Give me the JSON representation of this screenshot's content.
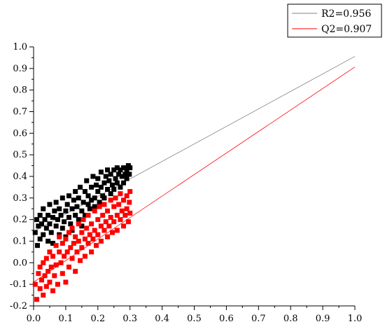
{
  "chart_data": {
    "type": "scatter",
    "title": "",
    "xlabel": "",
    "ylabel": "",
    "xlim": [
      0.0,
      1.0
    ],
    "ylim": [
      -0.2,
      1.0
    ],
    "xticks": [
      "0.0",
      "0.1",
      "0.2",
      "0.3",
      "0.4",
      "0.5",
      "0.6",
      "0.7",
      "0.8",
      "0.9",
      "1.0"
    ],
    "yticks": [
      "-0.2",
      "-0.1",
      "0.0",
      "0.1",
      "0.2",
      "0.3",
      "0.4",
      "0.5",
      "0.6",
      "0.7",
      "0.8",
      "0.9",
      "1.0"
    ],
    "grid": false,
    "legend_position": "top-right",
    "series": [
      {
        "name": "R2=0.956",
        "kind": "fit-line",
        "color": "#808080",
        "intercept": 0.145,
        "slope": 0.811,
        "x_range": [
          0.0,
          1.0
        ]
      },
      {
        "name": "Q2=0.907",
        "kind": "fit-line",
        "color": "#ff0000",
        "intercept": -0.09,
        "slope": 0.997,
        "x_range": [
          0.0,
          1.0
        ]
      },
      {
        "kind": "points",
        "color": "#000000",
        "marker": "square",
        "points": [
          [
            0.005,
            0.14
          ],
          [
            0.01,
            0.2
          ],
          [
            0.012,
            0.08
          ],
          [
            0.015,
            0.17
          ],
          [
            0.02,
            0.22
          ],
          [
            0.02,
            0.11
          ],
          [
            0.025,
            0.18
          ],
          [
            0.03,
            0.13
          ],
          [
            0.03,
            0.25
          ],
          [
            0.035,
            0.2
          ],
          [
            0.04,
            0.16
          ],
          [
            0.045,
            0.1
          ],
          [
            0.045,
            0.22
          ],
          [
            0.05,
            0.18
          ],
          [
            0.05,
            0.27
          ],
          [
            0.055,
            0.14
          ],
          [
            0.06,
            0.21
          ],
          [
            0.06,
            0.09
          ],
          [
            0.065,
            0.24
          ],
          [
            0.07,
            0.17
          ],
          [
            0.07,
            0.28
          ],
          [
            0.075,
            0.2
          ],
          [
            0.08,
            0.13
          ],
          [
            0.08,
            0.25
          ],
          [
            0.085,
            0.22
          ],
          [
            0.09,
            0.16
          ],
          [
            0.09,
            0.3
          ],
          [
            0.095,
            0.19
          ],
          [
            0.1,
            0.24
          ],
          [
            0.1,
            0.12
          ],
          [
            0.105,
            0.27
          ],
          [
            0.11,
            0.21
          ],
          [
            0.11,
            0.31
          ],
          [
            0.115,
            0.18
          ],
          [
            0.12,
            0.25
          ],
          [
            0.12,
            0.15
          ],
          [
            0.125,
            0.29
          ],
          [
            0.13,
            0.22
          ],
          [
            0.13,
            0.33
          ],
          [
            0.135,
            0.26
          ],
          [
            0.14,
            0.2
          ],
          [
            0.14,
            0.3
          ],
          [
            0.145,
            0.35
          ],
          [
            0.15,
            0.24
          ],
          [
            0.15,
            0.17
          ],
          [
            0.155,
            0.28
          ],
          [
            0.16,
            0.33
          ],
          [
            0.16,
            0.22
          ],
          [
            0.165,
            0.38
          ],
          [
            0.17,
            0.27
          ],
          [
            0.17,
            0.31
          ],
          [
            0.175,
            0.25
          ],
          [
            0.18,
            0.35
          ],
          [
            0.18,
            0.29
          ],
          [
            0.185,
            0.4
          ],
          [
            0.19,
            0.3
          ],
          [
            0.19,
            0.26
          ],
          [
            0.195,
            0.36
          ],
          [
            0.2,
            0.33
          ],
          [
            0.2,
            0.39
          ],
          [
            0.205,
            0.28
          ],
          [
            0.21,
            0.35
          ],
          [
            0.21,
            0.42
          ],
          [
            0.215,
            0.31
          ],
          [
            0.22,
            0.37
          ],
          [
            0.22,
            0.3
          ],
          [
            0.225,
            0.4
          ],
          [
            0.23,
            0.34
          ],
          [
            0.23,
            0.43
          ],
          [
            0.235,
            0.38
          ],
          [
            0.24,
            0.32
          ],
          [
            0.24,
            0.41
          ],
          [
            0.245,
            0.36
          ],
          [
            0.25,
            0.43
          ],
          [
            0.25,
            0.34
          ],
          [
            0.255,
            0.39
          ],
          [
            0.26,
            0.44
          ],
          [
            0.26,
            0.37
          ],
          [
            0.265,
            0.41
          ],
          [
            0.27,
            0.35
          ],
          [
            0.27,
            0.43
          ],
          [
            0.275,
            0.4
          ],
          [
            0.28,
            0.37
          ],
          [
            0.28,
            0.44
          ],
          [
            0.285,
            0.41
          ],
          [
            0.29,
            0.39
          ],
          [
            0.29,
            0.43
          ],
          [
            0.295,
            0.45
          ],
          [
            0.298,
            0.41
          ],
          [
            0.3,
            0.44
          ]
        ]
      },
      {
        "kind": "points",
        "color": "#ff0000",
        "marker": "square",
        "points": [
          [
            0.005,
            -0.1
          ],
          [
            0.01,
            -0.17
          ],
          [
            0.015,
            -0.05
          ],
          [
            0.02,
            -0.12
          ],
          [
            0.02,
            -0.02
          ],
          [
            0.025,
            -0.08
          ],
          [
            0.03,
            -0.15
          ],
          [
            0.03,
            0.0
          ],
          [
            0.035,
            -0.06
          ],
          [
            0.04,
            -0.11
          ],
          [
            0.04,
            0.02
          ],
          [
            0.045,
            -0.04
          ],
          [
            0.05,
            -0.09
          ],
          [
            0.05,
            0.05
          ],
          [
            0.055,
            -0.02
          ],
          [
            0.06,
            -0.13
          ],
          [
            0.06,
            0.03
          ],
          [
            0.065,
            -0.06
          ],
          [
            0.07,
            0.08
          ],
          [
            0.07,
            -0.01
          ],
          [
            0.075,
            -0.1
          ],
          [
            0.08,
            0.05
          ],
          [
            0.08,
            0.12
          ],
          [
            0.085,
            0.0
          ],
          [
            0.09,
            -0.05
          ],
          [
            0.09,
            0.09
          ],
          [
            0.095,
            0.03
          ],
          [
            0.1,
            -0.09
          ],
          [
            0.1,
            0.11
          ],
          [
            0.105,
            0.05
          ],
          [
            0.11,
            -0.02
          ],
          [
            0.11,
            0.14
          ],
          [
            0.115,
            0.07
          ],
          [
            0.12,
            0.02
          ],
          [
            0.12,
            0.16
          ],
          [
            0.125,
            0.09
          ],
          [
            0.13,
            -0.04
          ],
          [
            0.13,
            0.12
          ],
          [
            0.135,
            0.05
          ],
          [
            0.14,
            0.18
          ],
          [
            0.14,
            0.1
          ],
          [
            0.145,
            0.01
          ],
          [
            0.15,
            0.14
          ],
          [
            0.15,
            0.07
          ],
          [
            0.155,
            0.2
          ],
          [
            0.16,
            0.11
          ],
          [
            0.16,
            0.03
          ],
          [
            0.165,
            0.16
          ],
          [
            0.17,
            0.09
          ],
          [
            0.17,
            0.22
          ],
          [
            0.175,
            0.13
          ],
          [
            0.18,
            0.05
          ],
          [
            0.18,
            0.18
          ],
          [
            0.185,
            0.11
          ],
          [
            0.19,
            0.24
          ],
          [
            0.19,
            0.15
          ],
          [
            0.195,
            0.08
          ],
          [
            0.2,
            0.2
          ],
          [
            0.2,
            0.13
          ],
          [
            0.205,
            0.26
          ],
          [
            0.21,
            0.17
          ],
          [
            0.21,
            0.1
          ],
          [
            0.215,
            0.22
          ],
          [
            0.22,
            0.15
          ],
          [
            0.22,
            0.27
          ],
          [
            0.225,
            0.19
          ],
          [
            0.23,
            0.12
          ],
          [
            0.23,
            0.24
          ],
          [
            0.235,
            0.17
          ],
          [
            0.24,
            0.29
          ],
          [
            0.24,
            0.21
          ],
          [
            0.245,
            0.14
          ],
          [
            0.25,
            0.26
          ],
          [
            0.25,
            0.19
          ],
          [
            0.255,
            0.3
          ],
          [
            0.26,
            0.22
          ],
          [
            0.26,
            0.15
          ],
          [
            0.265,
            0.27
          ],
          [
            0.27,
            0.2
          ],
          [
            0.27,
            0.32
          ],
          [
            0.275,
            0.24
          ],
          [
            0.28,
            0.17
          ],
          [
            0.28,
            0.29
          ],
          [
            0.285,
            0.22
          ],
          [
            0.29,
            0.31
          ],
          [
            0.29,
            0.25
          ],
          [
            0.295,
            0.19
          ],
          [
            0.298,
            0.28
          ],
          [
            0.3,
            0.23
          ],
          [
            0.3,
            0.33
          ]
        ]
      }
    ]
  }
}
